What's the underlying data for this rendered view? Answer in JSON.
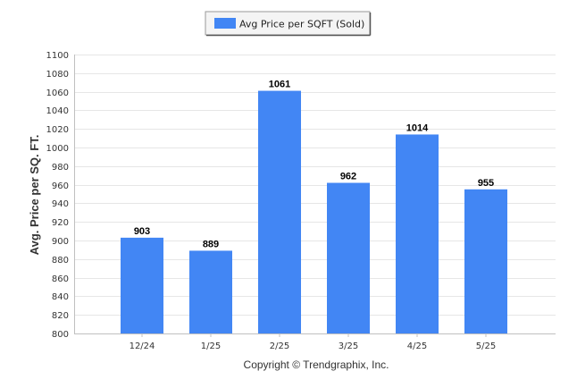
{
  "chart_data": {
    "type": "bar",
    "categories": [
      "12/24",
      "1/25",
      "2/25",
      "3/25",
      "4/25",
      "5/25"
    ],
    "series": [
      {
        "name": "Avg Price per SQFT (Sold)",
        "values": [
          903,
          889,
          1061,
          962,
          1014,
          955
        ]
      }
    ],
    "ylabel": "Avg. Price per SQ. FT.",
    "xlabel": "",
    "ylim": [
      800,
      1100
    ],
    "yticks": [
      800,
      820,
      840,
      860,
      880,
      900,
      920,
      940,
      960,
      980,
      1000,
      1020,
      1040,
      1060,
      1080,
      1100
    ],
    "grid": true,
    "legend": "top-center",
    "colors": {
      "bar": "#4286f4",
      "grid": "#e6e6e6",
      "axis": "#c0c0c0"
    }
  },
  "footer": {
    "copyright": "Copyright © Trendgraphix, Inc."
  }
}
